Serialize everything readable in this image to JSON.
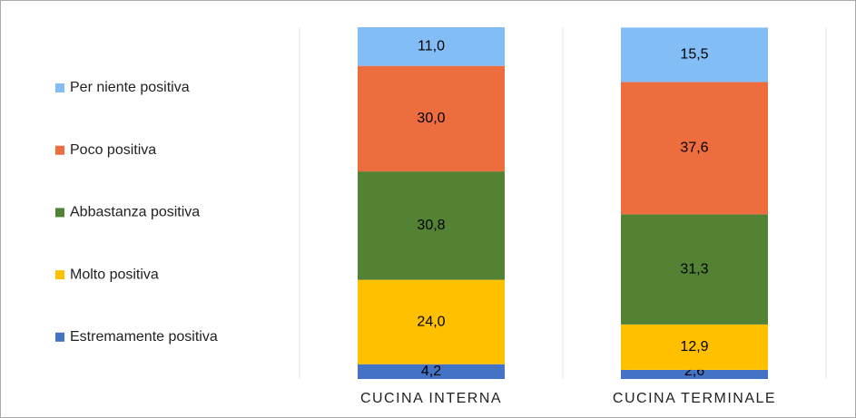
{
  "chart_data": {
    "type": "stacked-bar",
    "categories": [
      "CUCINA INTERNA",
      "CUCINA TERMINALE"
    ],
    "series": [
      {
        "name": "Estremamente positiva",
        "color": "#4472c4",
        "values": [
          4.2,
          2.6
        ],
        "value_labels": [
          "4,2",
          "2,6"
        ]
      },
      {
        "name": "Molto positiva",
        "color": "#ffc000",
        "values": [
          24.0,
          12.9
        ],
        "value_labels": [
          "24,0",
          "12,9"
        ]
      },
      {
        "name": "Abbastanza positiva",
        "color": "#548235",
        "values": [
          30.8,
          31.3
        ],
        "value_labels": [
          "30,8",
          "31,3"
        ]
      },
      {
        "name": "Poco positiva",
        "color": "#ed6d3f",
        "values": [
          30.0,
          37.6
        ],
        "value_labels": [
          "30,0",
          "37,6"
        ]
      },
      {
        "name": "Per niente positiva",
        "color": "#83bdf6",
        "values": [
          11.0,
          15.5
        ],
        "value_labels": [
          "11,0",
          "15,5"
        ]
      }
    ],
    "ylim": [
      0,
      100
    ],
    "legend": "left"
  }
}
